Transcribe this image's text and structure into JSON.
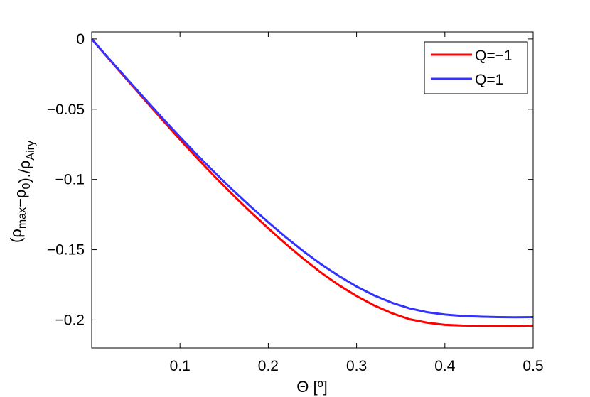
{
  "chart_data": {
    "type": "line",
    "xlabel": "Θ [º]",
    "ylabel": {
      "parts": [
        {
          "text": "(ρ"
        },
        {
          "text": "max",
          "sub": true
        },
        {
          "text": "−ρ"
        },
        {
          "text": "0",
          "sub": true
        },
        {
          "text": ")./ρ"
        },
        {
          "text": "Airy",
          "sub": true
        }
      ]
    },
    "xlim": [
      0,
      0.5
    ],
    "ylim": [
      -0.22,
      0.005
    ],
    "xticks": [
      0.1,
      0.2,
      0.3,
      0.4,
      0.5
    ],
    "xtick_labels": [
      "0.1",
      "0.2",
      "0.3",
      "0.4",
      "0.5"
    ],
    "yticks": [
      0,
      -0.05,
      -0.1,
      -0.15,
      -0.2
    ],
    "ytick_labels": [
      "0",
      "−0.05",
      "−0.1",
      "−0.15",
      "−0.2"
    ],
    "grid": false,
    "legend_position": "top-right",
    "x": [
      0,
      0.02,
      0.04,
      0.06,
      0.08,
      0.1,
      0.12,
      0.14,
      0.16,
      0.18,
      0.2,
      0.22,
      0.24,
      0.26,
      0.28,
      0.3,
      0.32,
      0.34,
      0.36,
      0.38,
      0.4,
      0.42,
      0.44,
      0.46,
      0.48,
      0.5
    ],
    "series": [
      {
        "name": "Q=−1",
        "color": "#ff0000",
        "values": [
          0,
          -0.0146,
          -0.029,
          -0.0433,
          -0.0576,
          -0.0716,
          -0.0852,
          -0.0984,
          -0.111,
          -0.1232,
          -0.1348,
          -0.146,
          -0.1566,
          -0.1665,
          -0.1753,
          -0.183,
          -0.1897,
          -0.1952,
          -0.1995,
          -0.202,
          -0.2035,
          -0.204,
          -0.2041,
          -0.2042,
          -0.2043,
          -0.204
        ]
      },
      {
        "name": "Q=1",
        "color": "#3333ff",
        "values": [
          0,
          -0.0143,
          -0.0284,
          -0.0424,
          -0.0563,
          -0.0698,
          -0.0829,
          -0.0955,
          -0.1077,
          -0.1193,
          -0.1305,
          -0.1412,
          -0.1512,
          -0.1605,
          -0.1688,
          -0.1762,
          -0.1826,
          -0.1878,
          -0.1918,
          -0.1945,
          -0.1962,
          -0.1972,
          -0.1977,
          -0.198,
          -0.1981,
          -0.198
        ]
      }
    ]
  }
}
